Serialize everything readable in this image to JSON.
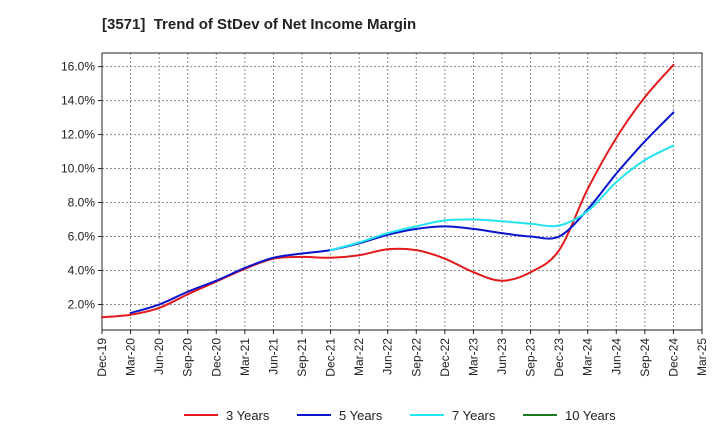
{
  "colors": {
    "three_years": "#e31a1c",
    "five_years": "#0a14cc",
    "seven_years": "#22e5f0",
    "ten_years": "#1a7a1a",
    "grid": "#8c8c8c",
    "axis": "#222222"
  },
  "chart_data": {
    "type": "line",
    "title": "[3571]  Trend of StDev of Net Income Margin",
    "xlabel": "",
    "ylabel": "",
    "x_ticks": [
      "Dec-19",
      "Mar-20",
      "Jun-20",
      "Sep-20",
      "Dec-20",
      "Mar-21",
      "Jun-21",
      "Sep-21",
      "Dec-21",
      "Mar-22",
      "Jun-22",
      "Sep-22",
      "Dec-22",
      "Mar-23",
      "Jun-23",
      "Sep-23",
      "Dec-23",
      "Mar-24",
      "Jun-24",
      "Sep-24",
      "Dec-24",
      "Mar-25"
    ],
    "y_ticks": [
      "2.0%",
      "4.0%",
      "6.0%",
      "8.0%",
      "10.0%",
      "12.0%",
      "14.0%",
      "16.0%"
    ],
    "ylim": [
      0.5,
      16.8
    ],
    "grid": true,
    "legend_position": "bottom",
    "series": [
      {
        "name": "3 Years",
        "color_key": "three_years",
        "points": [
          [
            "Dec-19",
            1.25
          ],
          [
            "Mar-20",
            1.4
          ],
          [
            "Jun-20",
            1.8
          ],
          [
            "Sep-20",
            2.6
          ],
          [
            "Dec-20",
            3.35
          ],
          [
            "Mar-21",
            4.1
          ],
          [
            "Jun-21",
            4.7
          ],
          [
            "Sep-21",
            4.8
          ],
          [
            "Dec-21",
            4.75
          ],
          [
            "Mar-22",
            4.9
          ],
          [
            "Jun-22",
            5.25
          ],
          [
            "Sep-22",
            5.2
          ],
          [
            "Dec-22",
            4.7
          ],
          [
            "Mar-23",
            3.9
          ],
          [
            "Jun-23",
            3.4
          ],
          [
            "Sep-23",
            3.9
          ],
          [
            "Dec-23",
            5.2
          ],
          [
            "Mar-24",
            8.8
          ],
          [
            "Jun-24",
            11.8
          ],
          [
            "Sep-24",
            14.2
          ],
          [
            "Dec-24",
            16.1
          ]
        ]
      },
      {
        "name": "5 Years",
        "color_key": "five_years",
        "points": [
          [
            "Mar-20",
            1.5
          ],
          [
            "Jun-20",
            2.0
          ],
          [
            "Sep-20",
            2.75
          ],
          [
            "Dec-20",
            3.4
          ],
          [
            "Mar-21",
            4.15
          ],
          [
            "Jun-21",
            4.75
          ],
          [
            "Sep-21",
            5.0
          ],
          [
            "Dec-21",
            5.2
          ],
          [
            "Mar-22",
            5.6
          ],
          [
            "Jun-22",
            6.1
          ],
          [
            "Sep-22",
            6.45
          ],
          [
            "Dec-22",
            6.6
          ],
          [
            "Mar-23",
            6.45
          ],
          [
            "Jun-23",
            6.2
          ],
          [
            "Sep-23",
            6.0
          ],
          [
            "Dec-23",
            6.0
          ],
          [
            "Mar-24",
            7.6
          ],
          [
            "Jun-24",
            9.7
          ],
          [
            "Sep-24",
            11.6
          ],
          [
            "Dec-24",
            13.3
          ]
        ]
      },
      {
        "name": "7 Years",
        "color_key": "seven_years",
        "points": [
          [
            "Dec-21",
            5.2
          ],
          [
            "Mar-22",
            5.65
          ],
          [
            "Jun-22",
            6.2
          ],
          [
            "Sep-22",
            6.6
          ],
          [
            "Dec-22",
            6.95
          ],
          [
            "Mar-23",
            7.0
          ],
          [
            "Jun-23",
            6.9
          ],
          [
            "Sep-23",
            6.75
          ],
          [
            "Dec-23",
            6.65
          ],
          [
            "Mar-24",
            7.5
          ],
          [
            "Jun-24",
            9.2
          ],
          [
            "Sep-24",
            10.5
          ],
          [
            "Dec-24",
            11.35
          ]
        ]
      },
      {
        "name": "10 Years",
        "color_key": "ten_years",
        "points": []
      }
    ]
  }
}
